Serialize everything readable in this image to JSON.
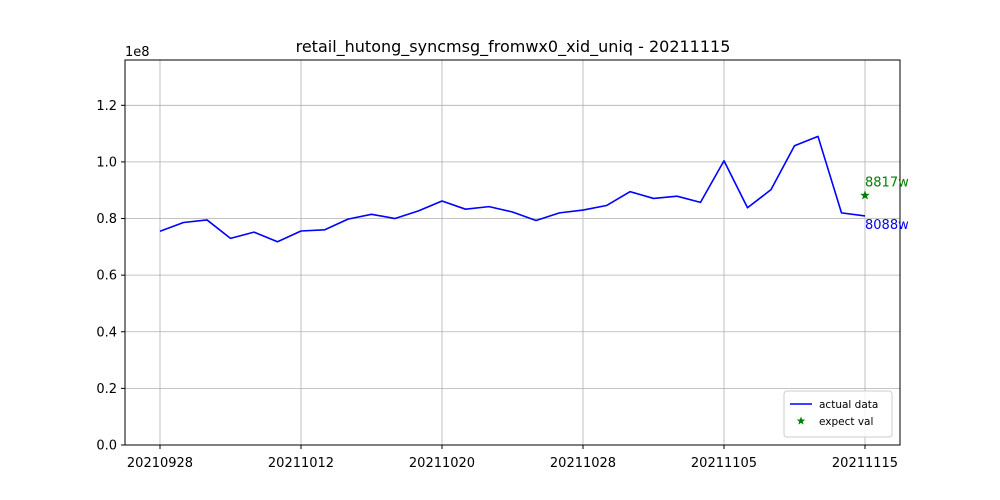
{
  "chart_data": {
    "type": "line",
    "title": "retail_hutong_syncmsg_fromwx0_xid_uniq - 20211115",
    "xlabel": "",
    "ylabel": "",
    "offset_label": "1e8",
    "ylim": [
      0,
      1.36
    ],
    "y_ticks": [
      0.0,
      0.2,
      0.4,
      0.6,
      0.8,
      1.0,
      1.2
    ],
    "y_tick_labels": [
      "0.0",
      "0.2",
      "0.4",
      "0.6",
      "0.8",
      "1.0",
      "1.2"
    ],
    "x_tick_labels": [
      "20210928",
      "20211012",
      "20211020",
      "20211028",
      "20211105",
      "20211115"
    ],
    "grid": true,
    "legend_position": "lower-right",
    "series": [
      {
        "name": "actual data",
        "color": "#0000ff",
        "values": [
          0.755,
          0.786,
          0.795,
          0.73,
          0.752,
          0.718,
          0.756,
          0.76,
          0.798,
          0.815,
          0.8,
          0.827,
          0.862,
          0.833,
          0.842,
          0.823,
          0.793,
          0.82,
          0.83,
          0.846,
          0.895,
          0.871,
          0.879,
          0.857,
          1.004,
          0.838,
          0.902,
          1.057,
          1.09,
          0.82,
          0.809
        ]
      },
      {
        "name": "expect val",
        "color": "#008000",
        "marker": "star",
        "index": 30,
        "value": 0.8817
      }
    ],
    "annotations": [
      {
        "text": "8817w",
        "color": "#008000",
        "index": 30,
        "value": 0.8817
      },
      {
        "text": "8088w",
        "color": "#0000ff",
        "index": 30,
        "value": 0.8088
      }
    ]
  }
}
